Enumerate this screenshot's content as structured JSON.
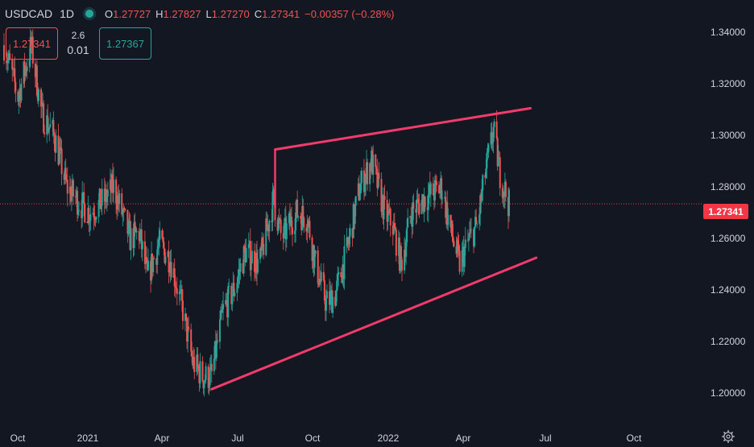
{
  "legend": {
    "symbol": "USDCAD",
    "interval": "1D",
    "status_color": "#26a69a",
    "open_label": "O",
    "open": "1.27727",
    "high_label": "H",
    "high": "1.27827",
    "low_label": "L",
    "low": "1.27270",
    "close_label": "C",
    "close": "1.27341",
    "change": "−0.00357 (−0.28%)"
  },
  "trade": {
    "sell_price": "1.27341",
    "spread_top": "2.6",
    "spread_bottom": "0.01",
    "buy_price": "1.27367"
  },
  "last_price_tag": "1.27341",
  "chart_data": {
    "type": "candlestick",
    "symbol": "USDCAD",
    "interval": "1D",
    "yaxis_ticks": [
      "1.34000",
      "1.32000",
      "1.30000",
      "1.28000",
      "1.26000",
      "1.24000",
      "1.22000",
      "1.20000"
    ],
    "xaxis_ticks": [
      "Oct",
      "2021",
      "Apr",
      "Jul",
      "Oct",
      "2022",
      "Apr",
      "Jul",
      "Oct"
    ],
    "ylim": [
      1.1875,
      1.3525
    ],
    "last_price": 1.27341,
    "colors": {
      "up": "#26a69a",
      "down": "#ef5350",
      "trendline": "#f23b6b",
      "price_line": "#f23645"
    },
    "path_points": [
      [
        "2020-09-25",
        1.335
      ],
      [
        "2020-10-01",
        1.328
      ],
      [
        "2020-10-12",
        1.315
      ],
      [
        "2020-10-28",
        1.335
      ],
      [
        "2020-11-10",
        1.308
      ],
      [
        "2020-11-25",
        1.3
      ],
      [
        "2020-12-10",
        1.28
      ],
      [
        "2020-12-28",
        1.273
      ],
      [
        "2021-01-07",
        1.27
      ],
      [
        "2021-01-25",
        1.275
      ],
      [
        "2021-02-05",
        1.28
      ],
      [
        "2021-02-25",
        1.26
      ],
      [
        "2021-03-08",
        1.262
      ],
      [
        "2021-03-18",
        1.245
      ],
      [
        "2021-04-01",
        1.258
      ],
      [
        "2021-04-15",
        1.252
      ],
      [
        "2021-04-30",
        1.232
      ],
      [
        "2021-05-12",
        1.212
      ],
      [
        "2021-05-25",
        1.206
      ],
      [
        "2021-06-04",
        1.207
      ],
      [
        "2021-06-18",
        1.232
      ],
      [
        "2021-07-01",
        1.24
      ],
      [
        "2021-07-15",
        1.255
      ],
      [
        "2021-08-01",
        1.25
      ],
      [
        "2021-08-18",
        1.275
      ],
      [
        "2021-08-28",
        1.26
      ],
      [
        "2021-09-15",
        1.27
      ],
      [
        "2021-09-28",
        1.268
      ],
      [
        "2021-10-08",
        1.25
      ],
      [
        "2021-10-21",
        1.235
      ],
      [
        "2021-11-01",
        1.238
      ],
      [
        "2021-11-15",
        1.255
      ],
      [
        "2021-12-01",
        1.28
      ],
      [
        "2021-12-15",
        1.29
      ],
      [
        "2021-12-31",
        1.27
      ],
      [
        "2022-01-10",
        1.265
      ],
      [
        "2022-01-20",
        1.25
      ],
      [
        "2022-02-01",
        1.27
      ],
      [
        "2022-02-15",
        1.275
      ],
      [
        "2022-03-01",
        1.278
      ],
      [
        "2022-03-10",
        1.28
      ],
      [
        "2022-03-22",
        1.262
      ],
      [
        "2022-04-01",
        1.25
      ],
      [
        "2022-04-13",
        1.26
      ],
      [
        "2022-04-22",
        1.265
      ],
      [
        "2022-05-02",
        1.285
      ],
      [
        "2022-05-12",
        1.302
      ],
      [
        "2022-05-20",
        1.285
      ],
      [
        "2022-05-31",
        1.273
      ]
    ],
    "trendlines": [
      {
        "name": "upper",
        "start": [
          "2021-08-20",
          1.2945
        ],
        "end": [
          "2022-06-26",
          1.3105
        ]
      },
      {
        "name": "lower",
        "start": [
          "2021-06-04",
          1.2015
        ],
        "end": [
          "2022-07-03",
          1.2525
        ]
      }
    ],
    "vertical_marker": {
      "date": "2021-08-20",
      "from": 1.2715,
      "to": 1.2945
    },
    "grid": false,
    "legend": "top-left"
  }
}
